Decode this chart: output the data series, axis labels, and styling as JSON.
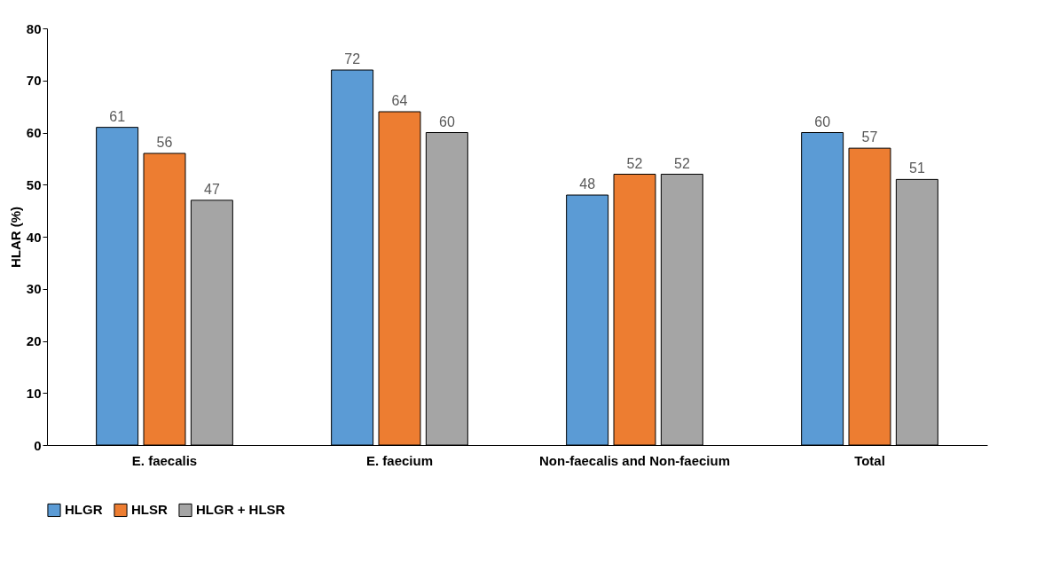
{
  "chart_data": {
    "type": "bar",
    "ylabel": "HLAR (%)",
    "categories": [
      "E. faecalis",
      "E. faecium",
      "Non-faecalis and Non-faecium",
      "Total"
    ],
    "series": [
      {
        "name": "HLGR",
        "color": "#5b9bd5",
        "values": [
          61,
          72,
          48,
          60
        ]
      },
      {
        "name": "HLSR",
        "color": "#ed7d31",
        "values": [
          56,
          64,
          52,
          57
        ]
      },
      {
        "name": "HLGR + HLSR",
        "color": "#a5a5a5",
        "values": [
          47,
          60,
          52,
          51
        ]
      }
    ],
    "ylim": [
      0,
      80
    ],
    "yticks": [
      0,
      10,
      20,
      30,
      40,
      50,
      60,
      70,
      80
    ],
    "grid": false,
    "legend": "bottom",
    "data_labels": true
  }
}
